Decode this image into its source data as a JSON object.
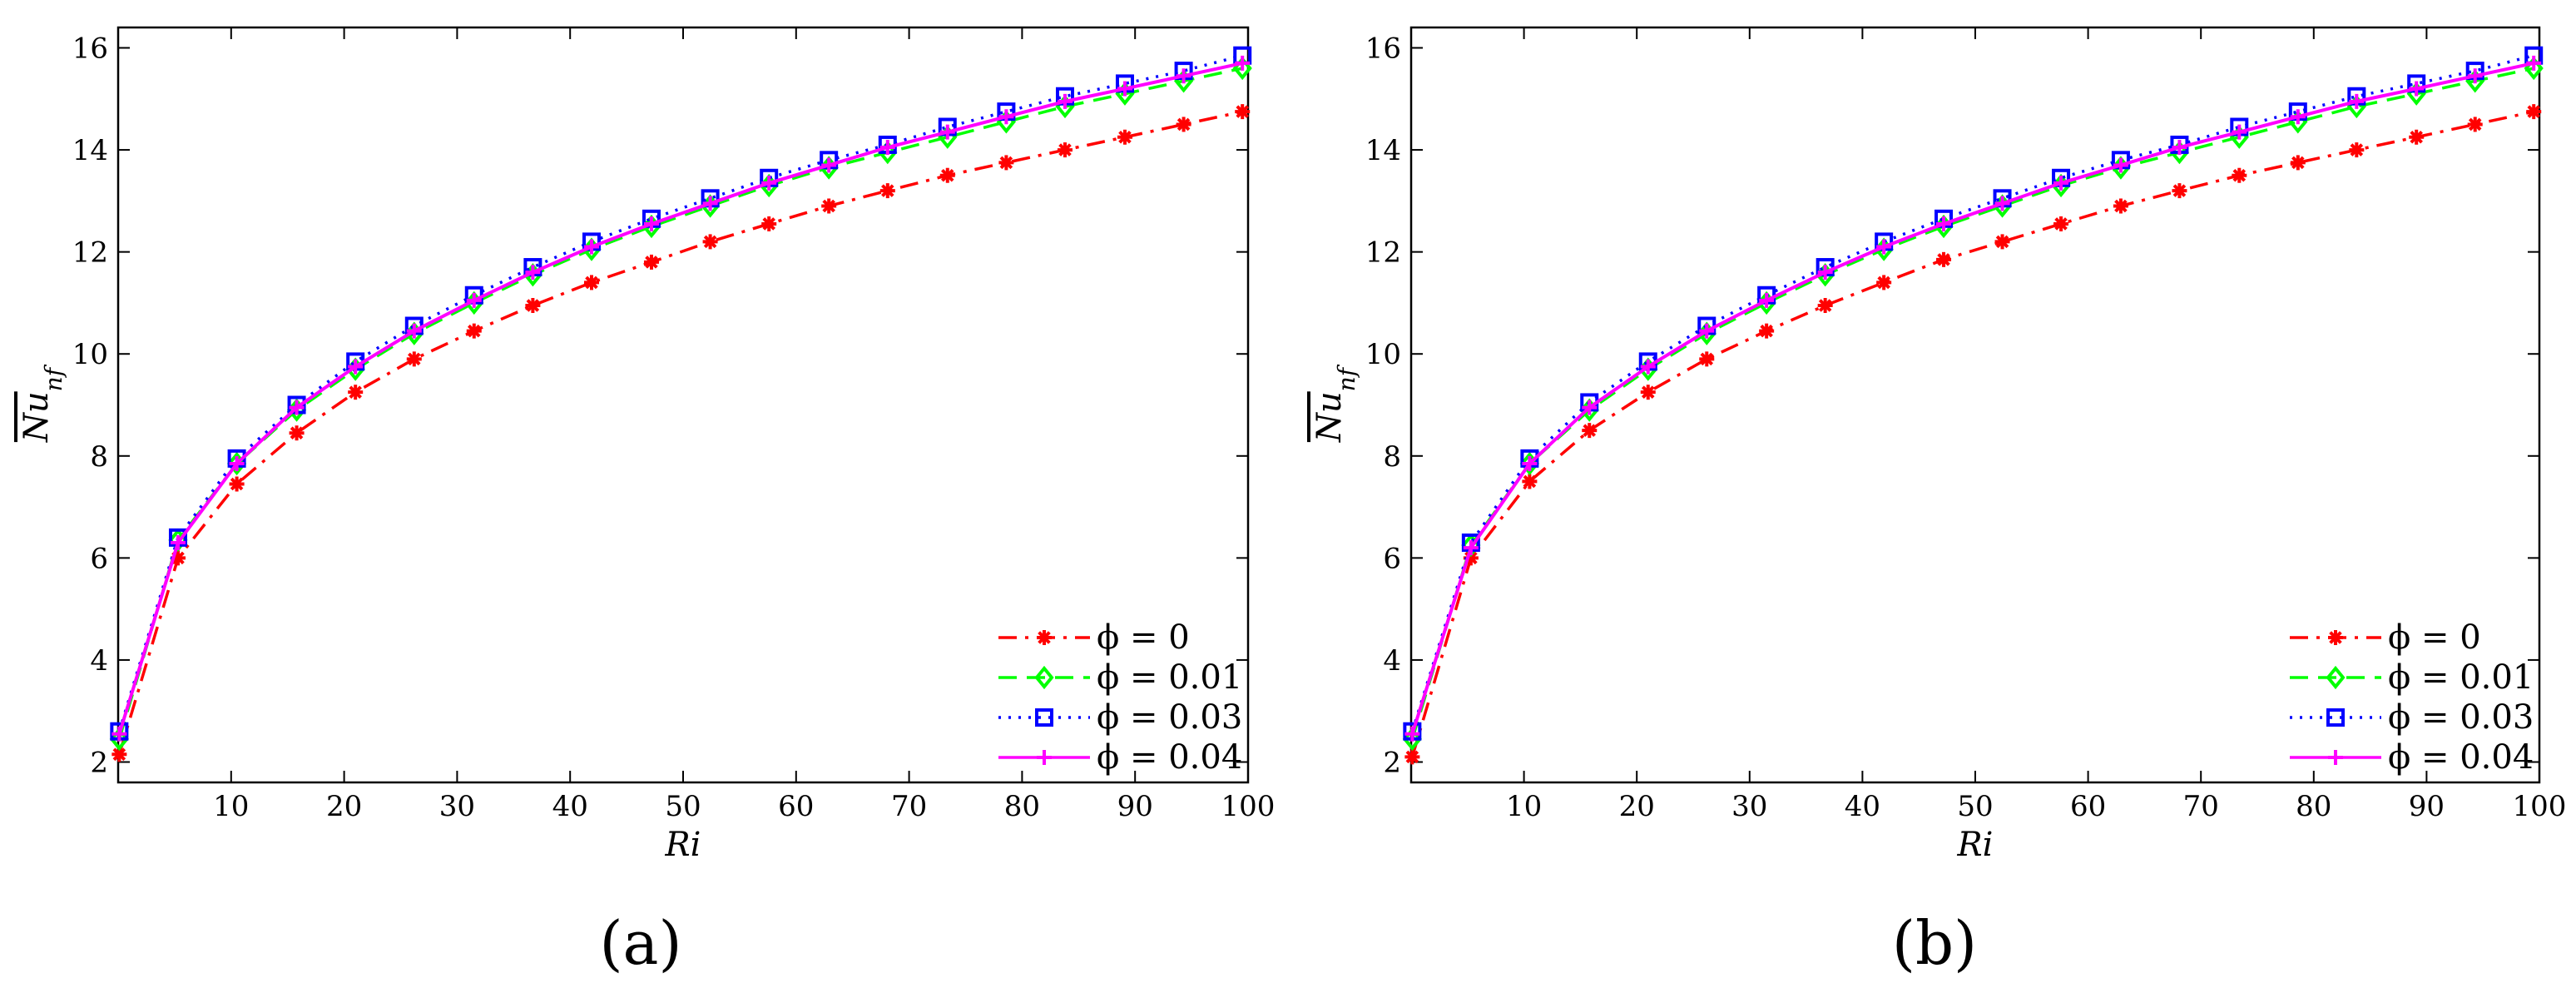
{
  "chart_data": [
    {
      "type": "line",
      "panel_label": "(a)",
      "xlabel": "Ri",
      "ylabel": "Nu_nf",
      "ylabel_parts": {
        "base": "Nu",
        "sub": "nf"
      },
      "xlim": [
        0,
        100
      ],
      "ylim": [
        1.6,
        16.4
      ],
      "xticks": [
        10,
        20,
        30,
        40,
        50,
        60,
        70,
        80,
        90,
        100
      ],
      "yticks": [
        2,
        4,
        6,
        8,
        10,
        12,
        14,
        16
      ],
      "grid": false,
      "legend_position": "bottom-right",
      "x": [
        0.1,
        5.3,
        10.5,
        15.8,
        21.0,
        26.2,
        31.5,
        36.7,
        41.9,
        47.2,
        52.4,
        57.6,
        62.9,
        68.1,
        73.4,
        78.6,
        83.8,
        89.1,
        94.3,
        99.5
      ],
      "series": [
        {
          "name": "φ = 0",
          "legend": "ϕ = 0",
          "color": "#ff0000",
          "dash": "dashdot",
          "marker": "asterisk",
          "values": [
            2.15,
            6.0,
            7.45,
            8.45,
            9.25,
            9.9,
            10.45,
            10.95,
            11.4,
            11.8,
            12.2,
            12.55,
            12.9,
            13.2,
            13.5,
            13.75,
            14.0,
            14.25,
            14.5,
            14.75
          ]
        },
        {
          "name": "φ = 0.01",
          "legend": "ϕ = 0.01",
          "color": "#00ff00",
          "dash": "dashed",
          "marker": "diamond",
          "values": [
            2.45,
            6.35,
            7.85,
            8.9,
            9.7,
            10.4,
            11.0,
            11.55,
            12.05,
            12.5,
            12.9,
            13.3,
            13.65,
            13.95,
            14.25,
            14.55,
            14.85,
            15.1,
            15.35,
            15.6
          ]
        },
        {
          "name": "φ = 0.03",
          "legend": "ϕ = 0.03",
          "color": "#0000ff",
          "dash": "dotted",
          "marker": "square",
          "values": [
            2.6,
            6.4,
            7.95,
            9.0,
            9.85,
            10.55,
            11.15,
            11.7,
            12.2,
            12.65,
            13.05,
            13.45,
            13.8,
            14.1,
            14.45,
            14.75,
            15.05,
            15.3,
            15.55,
            15.85
          ]
        },
        {
          "name": "φ = 0.04",
          "legend": "ϕ = 0.04",
          "color": "#ff00ff",
          "dash": "solid",
          "marker": "plus",
          "values": [
            2.55,
            6.3,
            7.85,
            8.95,
            9.75,
            10.45,
            11.05,
            11.6,
            12.1,
            12.55,
            12.95,
            13.35,
            13.7,
            14.05,
            14.35,
            14.65,
            14.95,
            15.2,
            15.45,
            15.7
          ]
        }
      ]
    },
    {
      "type": "line",
      "panel_label": "(b)",
      "xlabel": "Ri",
      "ylabel": "Nu_nf",
      "ylabel_parts": {
        "base": "Nu",
        "sub": "nf"
      },
      "xlim": [
        0,
        100
      ],
      "ylim": [
        1.6,
        16.4
      ],
      "xticks": [
        10,
        20,
        30,
        40,
        50,
        60,
        70,
        80,
        90,
        100
      ],
      "yticks": [
        2,
        4,
        6,
        8,
        10,
        12,
        14,
        16
      ],
      "grid": false,
      "legend_position": "bottom-right",
      "x": [
        0.1,
        5.3,
        10.5,
        15.8,
        21.0,
        26.2,
        31.5,
        36.7,
        41.9,
        47.2,
        52.4,
        57.6,
        62.9,
        68.1,
        73.4,
        78.6,
        83.8,
        89.1,
        94.3,
        99.5
      ],
      "series": [
        {
          "name": "φ = 0",
          "legend": "ϕ = 0",
          "color": "#ff0000",
          "dash": "dashdot",
          "marker": "asterisk",
          "values": [
            2.1,
            6.0,
            7.5,
            8.5,
            9.25,
            9.9,
            10.45,
            10.95,
            11.4,
            11.85,
            12.2,
            12.55,
            12.9,
            13.2,
            13.5,
            13.75,
            14.0,
            14.25,
            14.5,
            14.75
          ]
        },
        {
          "name": "φ = 0.01",
          "legend": "ϕ = 0.01",
          "color": "#00ff00",
          "dash": "dashed",
          "marker": "diamond",
          "values": [
            2.45,
            6.25,
            7.85,
            8.9,
            9.7,
            10.4,
            11.0,
            11.55,
            12.05,
            12.5,
            12.9,
            13.3,
            13.65,
            13.95,
            14.25,
            14.55,
            14.85,
            15.1,
            15.35,
            15.6
          ]
        },
        {
          "name": "φ = 0.03",
          "legend": "ϕ = 0.03",
          "color": "#0000ff",
          "dash": "dotted",
          "marker": "square",
          "values": [
            2.6,
            6.3,
            7.95,
            9.05,
            9.85,
            10.55,
            11.15,
            11.7,
            12.2,
            12.65,
            13.05,
            13.45,
            13.8,
            14.1,
            14.45,
            14.75,
            15.05,
            15.3,
            15.55,
            15.85
          ]
        },
        {
          "name": "φ = 0.04",
          "legend": "ϕ = 0.04",
          "color": "#ff00ff",
          "dash": "solid",
          "marker": "plus",
          "values": [
            2.55,
            6.2,
            7.85,
            8.95,
            9.75,
            10.45,
            11.05,
            11.6,
            12.1,
            12.55,
            12.95,
            13.35,
            13.7,
            14.05,
            14.35,
            14.65,
            14.95,
            15.2,
            15.45,
            15.7
          ]
        }
      ]
    }
  ]
}
